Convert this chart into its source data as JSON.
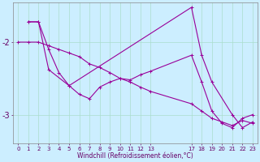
{
  "xlabel": "Windchill (Refroidissement éolien,°C)",
  "bg_color": "#cceeff",
  "line_color": "#990099",
  "grid_color": "#aaddcc",
  "yticks": [
    -3,
    -2
  ],
  "line1_x": [
    0,
    1,
    2,
    3,
    4,
    5,
    6,
    7,
    8,
    9,
    10,
    11,
    12,
    13,
    17,
    18,
    19,
    20,
    21,
    22,
    23
  ],
  "line1_y": [
    -2.0,
    -2.0,
    -2.0,
    -2.05,
    -2.1,
    -2.15,
    -2.2,
    -2.3,
    -2.35,
    -2.42,
    -2.5,
    -2.55,
    -2.62,
    -2.68,
    -2.85,
    -2.95,
    -3.05,
    -3.1,
    -3.15,
    -3.08,
    -3.12
  ],
  "line2_x": [
    1,
    2,
    3,
    4,
    5,
    6,
    7,
    8,
    9,
    10,
    11,
    12,
    13,
    17,
    18,
    19,
    20,
    21,
    22,
    23
  ],
  "line2_y": [
    -1.72,
    -1.72,
    -2.1,
    -2.42,
    -2.6,
    -2.72,
    -2.78,
    -2.62,
    -2.55,
    -2.5,
    -2.52,
    -2.45,
    -2.4,
    -2.18,
    -2.55,
    -2.95,
    -3.12,
    -3.18,
    -3.05,
    -3.0
  ],
  "line3_x": [
    1,
    2,
    3,
    5,
    17,
    18,
    19,
    21,
    22,
    23
  ],
  "line3_y": [
    -1.72,
    -1.72,
    -2.38,
    -2.6,
    -1.52,
    -2.18,
    -2.55,
    -3.0,
    -3.18,
    -3.1
  ],
  "ylim": [
    -3.4,
    -1.45
  ],
  "xlim": [
    -0.5,
    23.5
  ],
  "xtick_pos": [
    0,
    1,
    2,
    3,
    4,
    5,
    6,
    7,
    8,
    9,
    10,
    11,
    12,
    13,
    17,
    18,
    19,
    20,
    21,
    22,
    23
  ]
}
